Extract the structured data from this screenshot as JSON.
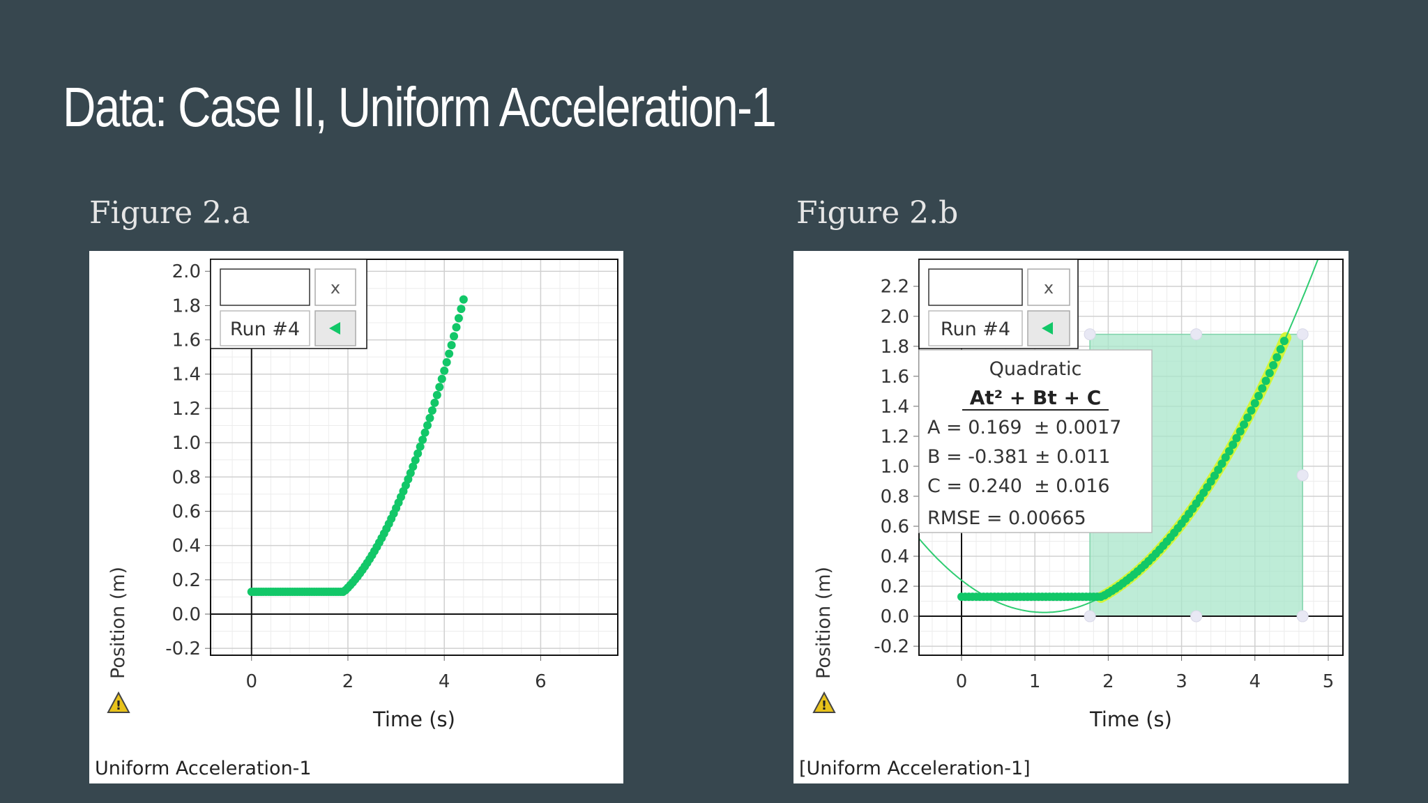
{
  "slide": {
    "title": "Data: Case II, Uniform Acceleration-1"
  },
  "colors": {
    "background": "#37474f",
    "data": "#12c768",
    "fit_line": "#2ecc71",
    "fit_glow": "#d4f53a",
    "selection": "#a8e6c9"
  },
  "figure_a": {
    "caption": "Figure 2.a",
    "footer": "Uniform Acceleration-1",
    "legend": {
      "run_label": "Run #4",
      "close_label": "x",
      "arrow_icon": "triangle-left-icon"
    },
    "warning_icon": "warning-triangle-icon"
  },
  "figure_b": {
    "caption": "Figure 2.b",
    "footer": "[Uniform Acceleration-1]",
    "legend": {
      "run_label": "Run #4",
      "close_label": "x",
      "arrow_icon": "triangle-left-icon"
    },
    "warning_icon": "warning-triangle-icon",
    "fit_box": {
      "title": "Quadratic",
      "equation": "At² + Bt + C",
      "lines": [
        "A = 0.169  ± 0.0017",
        "B = -0.381 ± 0.011",
        "C = 0.240  ± 0.016"
      ],
      "rmse": "RMSE = 0.00665"
    }
  },
  "chart_data": [
    {
      "type": "scatter",
      "title": "",
      "xlabel": "Time (s)",
      "ylabel": "Position (m)",
      "xlim": [
        -0.85,
        7.6
      ],
      "ylim": [
        -0.24,
        2.07
      ],
      "xticks": [
        0,
        2,
        4,
        6
      ],
      "yticks": [
        -0.2,
        0.0,
        0.2,
        0.4,
        0.6,
        0.8,
        1.0,
        1.2,
        1.4,
        1.6,
        1.8,
        2.0
      ],
      "grid": true,
      "series": [
        {
          "piecewise": {
            "flat_value": 0.13,
            "flat_until": 1.95,
            "t_start": 0,
            "t_end": 4.43,
            "A": 0.169,
            "B": -0.381,
            "C": 0.24
          }
        }
      ]
    },
    {
      "type": "scatter",
      "title": "",
      "xlabel": "Time (s)",
      "ylabel": "Position (m)",
      "xlim": [
        -0.58,
        5.2
      ],
      "ylim": [
        -0.26,
        2.38
      ],
      "xticks": [
        0,
        1,
        2,
        3,
        4,
        5
      ],
      "yticks": [
        -0.2,
        0.0,
        0.2,
        0.4,
        0.6,
        0.8,
        1.0,
        1.2,
        1.4,
        1.6,
        1.8,
        2.0,
        2.2
      ],
      "grid": true,
      "selection_range": {
        "x": [
          1.75,
          4.65
        ],
        "y": [
          0.0,
          1.88
        ]
      },
      "fit": {
        "model": "quadratic",
        "A": 0.169,
        "B": -0.381,
        "C": 0.24
      },
      "series": [
        {
          "piecewise": {
            "flat_value": 0.13,
            "flat_until": 1.95,
            "t_start": 0,
            "t_end": 4.43,
            "A": 0.169,
            "B": -0.381,
            "C": 0.24
          }
        }
      ]
    }
  ]
}
